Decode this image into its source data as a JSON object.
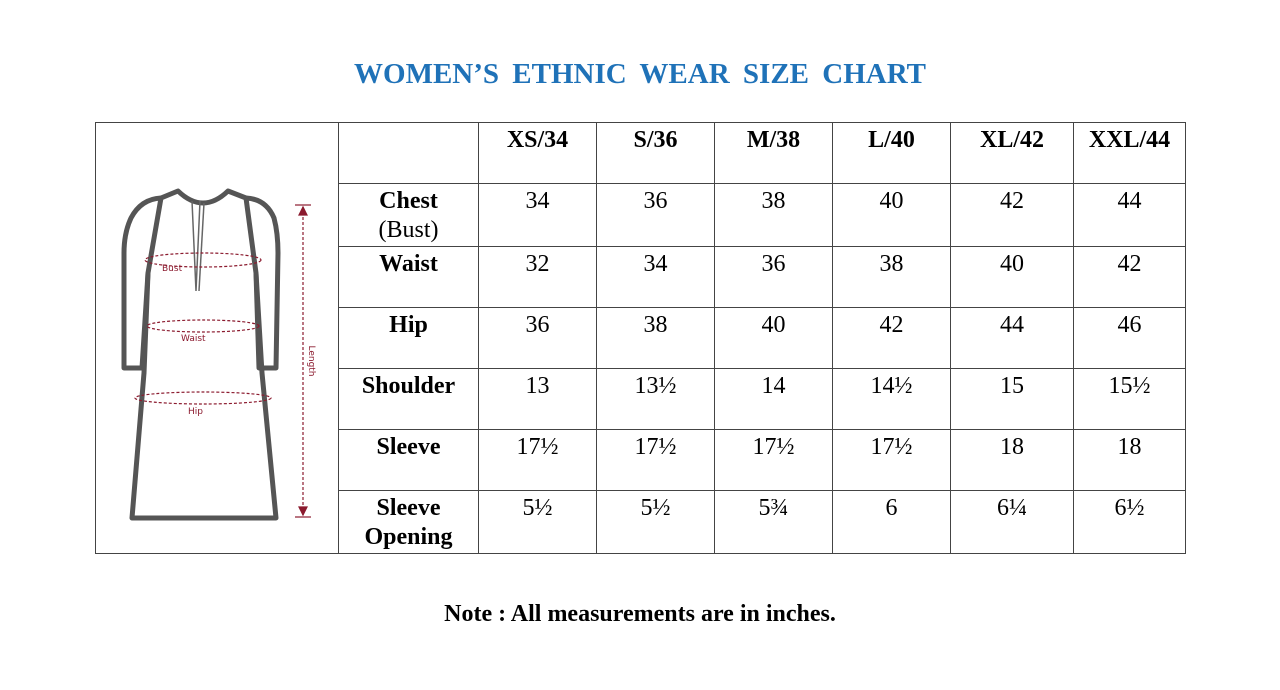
{
  "title": "WOMEN’S ETHNIC WEAR SIZE CHART",
  "diagram": {
    "bust": "Bust",
    "waist": "Waist",
    "hip": "Hip",
    "length": "Length"
  },
  "table": {
    "header": [
      "XS/34",
      "S/36",
      "M/38",
      "L/40",
      "XL/42",
      "XXL/44"
    ],
    "rows": [
      {
        "label": "Chest",
        "sublabel": "(Bust)",
        "cells": [
          "34",
          "36",
          "38",
          "40",
          "42",
          "44"
        ]
      },
      {
        "label": "Waist",
        "cells": [
          "32",
          "34",
          "36",
          "38",
          "40",
          "42"
        ]
      },
      {
        "label": "Hip",
        "cells": [
          "36",
          "38",
          "40",
          "42",
          "44",
          "46"
        ]
      },
      {
        "label": "Shoulder",
        "cells": [
          "13",
          "13½",
          "14",
          "14½",
          "15",
          "15½"
        ]
      },
      {
        "label": "Sleeve",
        "cells": [
          "17½",
          "17½",
          "17½",
          "17½",
          "18",
          "18"
        ]
      },
      {
        "label": "Sleeve Opening",
        "cells": [
          "5½",
          "5½",
          "5¾",
          "6",
          "6¼",
          "6½"
        ]
      }
    ]
  },
  "note": "Note : All measurements are in inches."
}
